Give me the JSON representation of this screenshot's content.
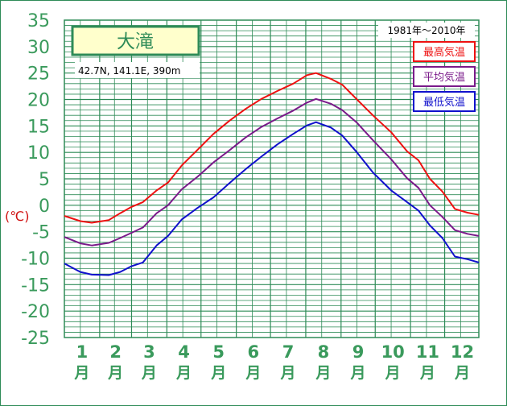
{
  "chart_data": {
    "type": "line",
    "title": "大滝",
    "location": "42.7N,  141.1E,  390m",
    "period": "1981年～2010年",
    "ylabel": "(℃)",
    "ylim": [
      -25,
      35
    ],
    "yticks": [
      "35",
      "30",
      "25",
      "20",
      "15",
      "10",
      "5",
      "0",
      "-5",
      "-10",
      "-15",
      "-20",
      "-25"
    ],
    "month_numbers": [
      "1",
      "2",
      "3",
      "4",
      "5",
      "6",
      "7",
      "8",
      "9",
      "10",
      "11",
      "12"
    ],
    "month_unit": "月",
    "grid": true,
    "legend_position": "top-right",
    "colors": {
      "frame": "#2e8b57",
      "grid": "#2e8b57",
      "tick_text": "#3a9a5c",
      "ylabel": "#d01010",
      "title_box_bg": "#ffffcc"
    },
    "days_per_month": [
      31,
      28,
      31,
      30,
      31,
      30,
      31,
      31,
      30,
      31,
      30,
      31
    ],
    "series": [
      {
        "name": "最高気温",
        "color": "#ee1111",
        "values": [
          [
            1,
            -2
          ],
          [
            15,
            -3
          ],
          [
            25,
            -3.3
          ],
          [
            40,
            -2.8
          ],
          [
            50,
            -1.5
          ],
          [
            60,
            -0.3
          ],
          [
            70,
            0.6
          ],
          [
            82,
            2.8
          ],
          [
            92,
            4.3
          ],
          [
            104,
            7.5
          ],
          [
            118,
            10.5
          ],
          [
            132,
            13.5
          ],
          [
            146,
            16.0
          ],
          [
            160,
            18.2
          ],
          [
            174,
            20.1
          ],
          [
            188,
            21.6
          ],
          [
            202,
            23.0
          ],
          [
            214,
            24.6
          ],
          [
            222,
            25.0
          ],
          [
            235,
            23.9
          ],
          [
            245,
            22.8
          ],
          [
            258,
            20.0
          ],
          [
            272,
            17.0
          ],
          [
            288,
            13.8
          ],
          [
            302,
            10.2
          ],
          [
            312,
            8.5
          ],
          [
            322,
            5.0
          ],
          [
            333,
            2.6
          ],
          [
            344,
            -0.7
          ],
          [
            355,
            -1.4
          ],
          [
            365,
            -1.8
          ]
        ]
      },
      {
        "name": "平均気温",
        "color": "#7a1a8a",
        "values": [
          [
            1,
            -6
          ],
          [
            15,
            -7.2
          ],
          [
            25,
            -7.6
          ],
          [
            40,
            -7.1
          ],
          [
            50,
            -6.2
          ],
          [
            60,
            -5.2
          ],
          [
            70,
            -4.2
          ],
          [
            82,
            -1.5
          ],
          [
            92,
            0.0
          ],
          [
            104,
            3.0
          ],
          [
            118,
            5.4
          ],
          [
            132,
            8.1
          ],
          [
            146,
            10.4
          ],
          [
            160,
            12.8
          ],
          [
            174,
            14.8
          ],
          [
            188,
            16.4
          ],
          [
            202,
            17.9
          ],
          [
            214,
            19.4
          ],
          [
            222,
            20.1
          ],
          [
            235,
            19.2
          ],
          [
            245,
            18.0
          ],
          [
            258,
            15.6
          ],
          [
            272,
            12.3
          ],
          [
            288,
            8.7
          ],
          [
            302,
            5.1
          ],
          [
            312,
            3.3
          ],
          [
            322,
            0.0
          ],
          [
            333,
            -2.2
          ],
          [
            344,
            -4.7
          ],
          [
            355,
            -5.4
          ],
          [
            365,
            -5.8
          ]
        ]
      },
      {
        "name": "最低気温",
        "color": "#1010cc",
        "values": [
          [
            1,
            -11
          ],
          [
            15,
            -12.6
          ],
          [
            25,
            -13.1
          ],
          [
            40,
            -13.2
          ],
          [
            50,
            -12.6
          ],
          [
            60,
            -11.5
          ],
          [
            70,
            -10.8
          ],
          [
            82,
            -7.6
          ],
          [
            92,
            -5.8
          ],
          [
            104,
            -2.7
          ],
          [
            118,
            -0.5
          ],
          [
            132,
            1.5
          ],
          [
            146,
            4.2
          ],
          [
            160,
            6.8
          ],
          [
            174,
            9.2
          ],
          [
            188,
            11.5
          ],
          [
            202,
            13.5
          ],
          [
            214,
            15.1
          ],
          [
            222,
            15.7
          ],
          [
            235,
            14.7
          ],
          [
            245,
            13.2
          ],
          [
            258,
            10.0
          ],
          [
            272,
            6.2
          ],
          [
            288,
            2.8
          ],
          [
            302,
            0.6
          ],
          [
            312,
            -1.0
          ],
          [
            322,
            -3.8
          ],
          [
            333,
            -6.2
          ],
          [
            344,
            -9.7
          ],
          [
            355,
            -10.2
          ],
          [
            365,
            -10.8
          ]
        ]
      }
    ]
  }
}
